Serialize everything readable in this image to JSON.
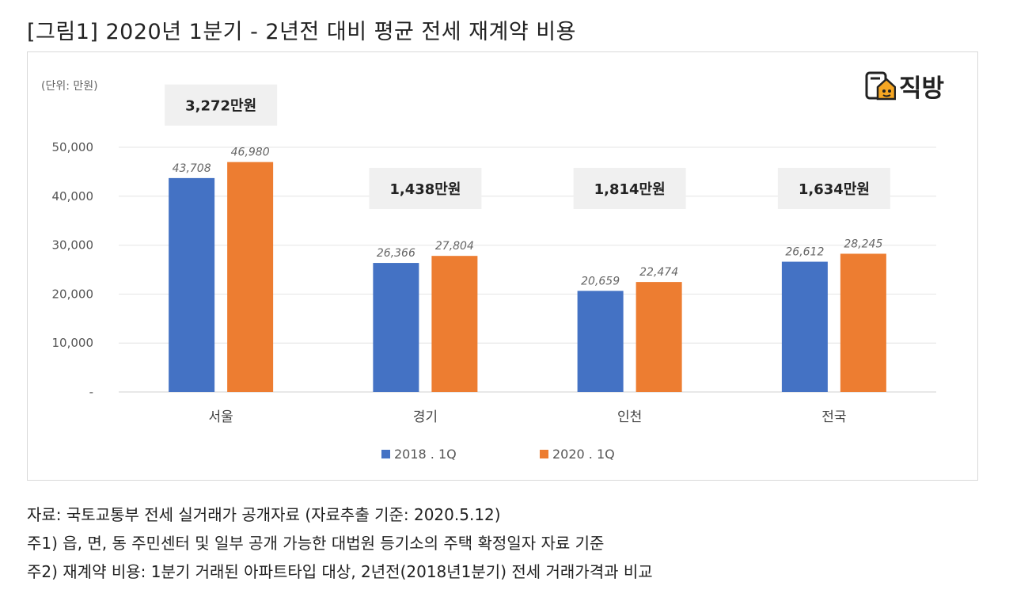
{
  "title": "[그림1] 2020년 1분기 - 2년전 대비 평균 전세 재계약 비용",
  "logo_text": "직방",
  "chart_data": {
    "type": "bar",
    "unit_label": "(단위: 만원)",
    "categories": [
      "서울",
      "경기",
      "인천",
      "전국"
    ],
    "series": [
      {
        "name": "2018 . 1Q",
        "color": "#4472C4",
        "values": [
          43708,
          26366,
          20659,
          26612
        ],
        "labels": [
          "43,708",
          "26,366",
          "20,659",
          "26,612"
        ]
      },
      {
        "name": "2020 . 1Q",
        "color": "#ED7D31",
        "values": [
          46980,
          27804,
          22474,
          28245
        ],
        "labels": [
          "46,980",
          "27,804",
          "22,474",
          "28,245"
        ]
      }
    ],
    "differences": [
      "3,272만원",
      "1,438만원",
      "1,814만원",
      "1,634만원"
    ],
    "yticks": [
      0,
      10000,
      20000,
      30000,
      40000,
      50000
    ],
    "ytick_labels": [
      "-",
      "10,000",
      "20,000",
      "30,000",
      "40,000",
      "50,000"
    ],
    "ylim": [
      0,
      50000
    ],
    "grid": true,
    "legend_position": "bottom"
  },
  "notes": [
    "자료: 국토교통부 전세 실거래가 공개자료 (자료추출 기준: 2020.5.12)",
    "주1) 읍, 면, 동 주민센터 및 일부 공개 가능한 대법원 등기소의 주택 확정일자 자료 기준",
    "주2) 재계약 비용: 1분기 거래된 아파트타입 대상, 2년전(2018년1분기) 전세 거래가격과 비교"
  ]
}
